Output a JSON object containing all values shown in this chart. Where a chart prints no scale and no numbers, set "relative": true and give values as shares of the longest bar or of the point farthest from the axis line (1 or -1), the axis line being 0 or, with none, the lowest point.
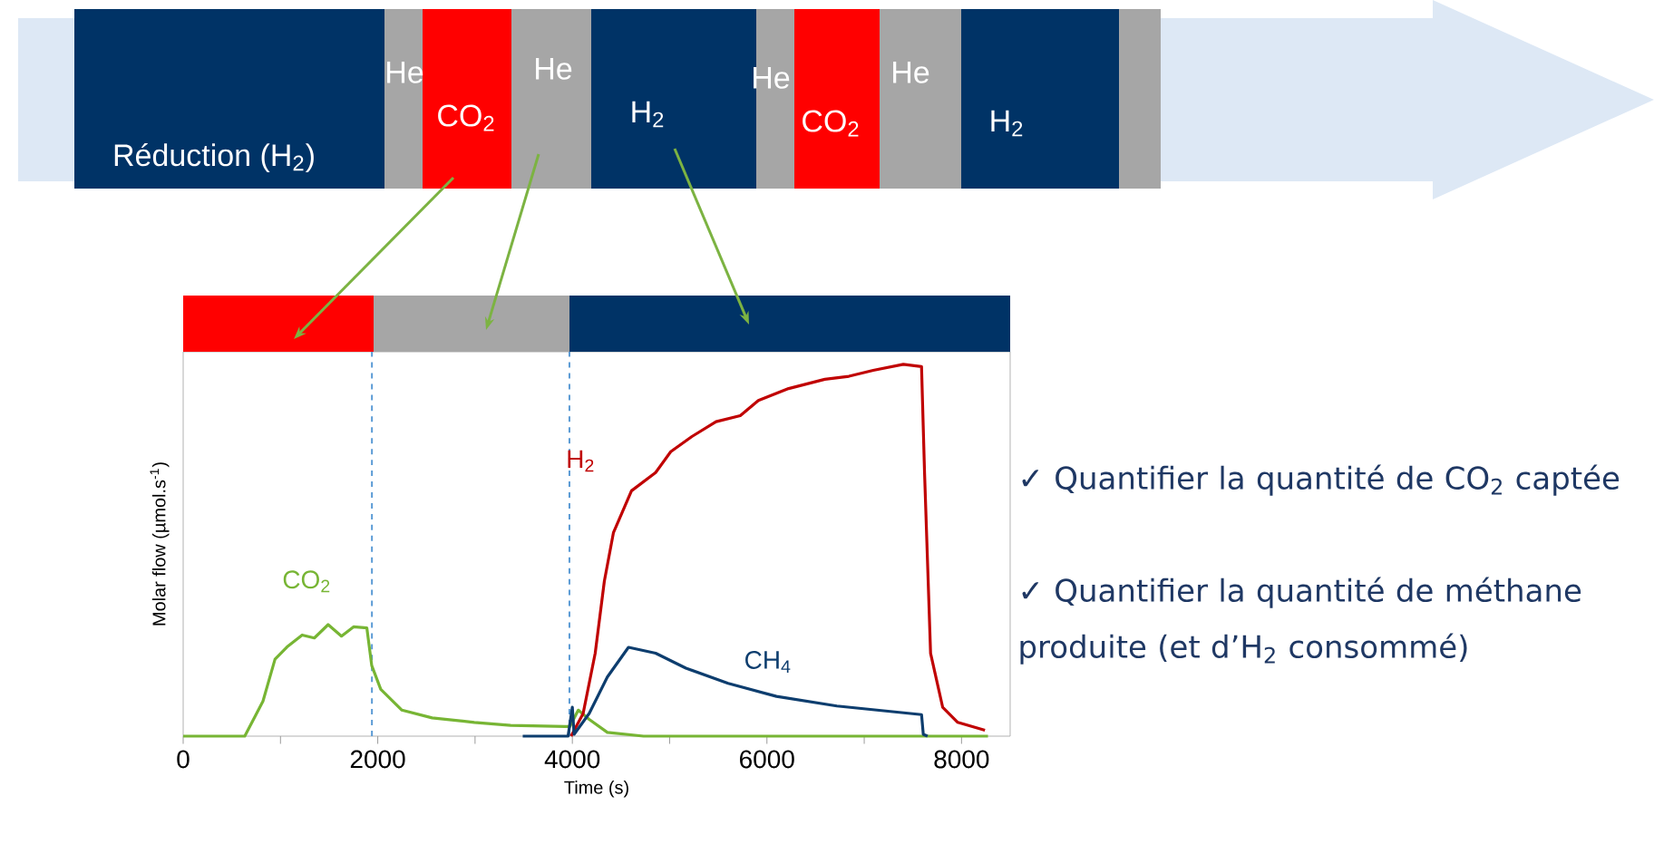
{
  "chart_data": {
    "type": "line",
    "relative": true,
    "xlabel": "Time (s)",
    "ylabel": "Molar flow (µmol.s$^{-1}$)",
    "xlim": [
      0,
      8500
    ],
    "xticks": [
      0,
      {
        "value": 1000,
        "label": null
      },
      2000,
      {
        "value": 3000,
        "label": null
      },
      4000,
      {
        "value": 5000,
        "label": null
      },
      6000,
      {
        "value": 7000,
        "label": null
      },
      8000
    ],
    "series": [
      {
        "name": "CO$_{2}$",
        "color": "#77b534",
        "x": [
          0,
          633,
          820,
          944,
          1068,
          1223,
          1348,
          1490,
          1627,
          1751,
          1888,
          1938,
          2031,
          2248,
          2559,
          2993,
          3366,
          3925,
          3975,
          4061,
          4173,
          4360,
          4732,
          8272
        ],
        "values": [
          0,
          0,
          0.094,
          0.207,
          0.24,
          0.272,
          0.264,
          0.3,
          0.269,
          0.294,
          0.291,
          0.19,
          0.126,
          0.07,
          0.049,
          0.037,
          0.029,
          0.026,
          0.026,
          0.07,
          0.045,
          0.01,
          0,
          0
        ]
      },
      {
        "name": "H$_{2}$",
        "color": "#c00000",
        "x": [
          3987,
          4111,
          4235,
          4329,
          4422,
          4608,
          4856,
          5011,
          5229,
          5477,
          5726,
          5912,
          6223,
          6595,
          6843,
          7092,
          7402,
          7589,
          7620,
          7682,
          7806,
          7961,
          8241
        ],
        "values": [
          0,
          0.061,
          0.223,
          0.417,
          0.547,
          0.66,
          0.709,
          0.765,
          0.806,
          0.846,
          0.862,
          0.903,
          0.935,
          0.96,
          0.968,
          0.984,
          1,
          0.994,
          0.709,
          0.223,
          0.078,
          0.037,
          0.016
        ]
      },
      {
        "name": "CH$_{4}$",
        "color": "#0d3d6e",
        "x": [
          3490,
          3956,
          4000,
          4018,
          4173,
          4360,
          4577,
          4856,
          5167,
          5601,
          6098,
          6719,
          7589,
          7607,
          7651
        ],
        "values": [
          0,
          0,
          0.078,
          0.005,
          0.061,
          0.159,
          0.239,
          0.223,
          0.183,
          0.142,
          0.107,
          0.081,
          0.058,
          0.005,
          0
        ]
      }
    ],
    "ref_lines": [
      {
        "axis": "x",
        "value": 1940,
        "color": "#5b9bd5",
        "line_style": "dashed"
      },
      {
        "axis": "x",
        "value": 3970,
        "color": "#5b9bd5",
        "line_style": "dashed"
      }
    ],
    "annotations": [
      "Réduction (H$_{2}$)",
      "He",
      "CO$_{2}$",
      "He",
      "H$_{2}$",
      "He",
      "CO$_{2}$",
      "He",
      "H$_{2}$",
      "✓ Quantifier la quantité de CO$_{2}$ captée",
      "✓ Quantifier la quantité de méthane produite (et d’H$_{2}$ consommé)"
    ]
  }
}
